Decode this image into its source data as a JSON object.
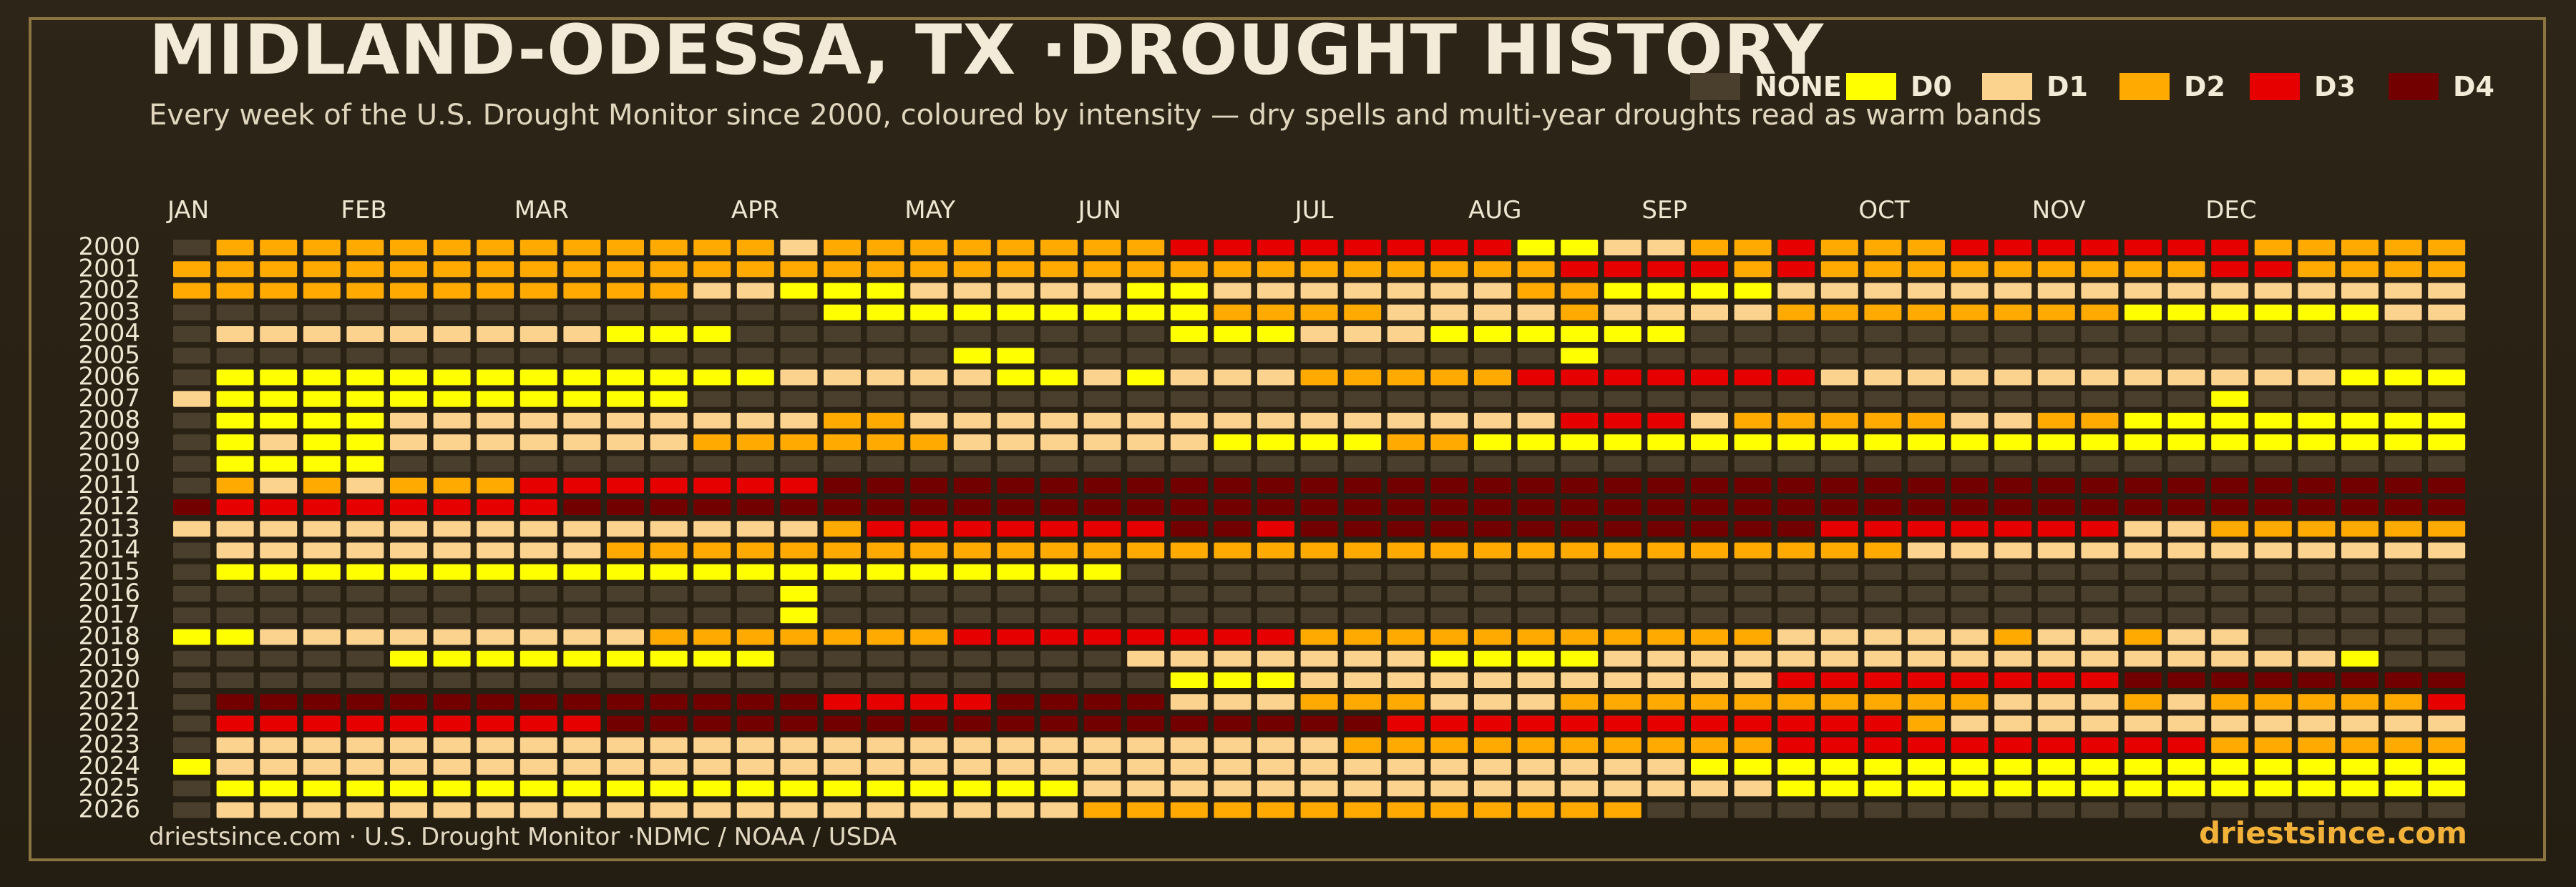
{
  "title": "MIDLAND-ODESSA, TX ·DROUGHT HISTORY",
  "subtitle": "Every week of the U.S. Drought Monitor since 2000, coloured by intensity — dry spells and multi-year droughts read as warm bands",
  "footer": {
    "source": "driestsince.com  · U.S. Drought Monitor ·NDMC / NOAA / USDA",
    "brand": "driestsince.com"
  },
  "colors": {
    "background": "#2b2416",
    "frame": "#8a7442",
    "brand": "#f2b23a"
  },
  "legend": [
    {
      "label": "NONE",
      "color": "#4a3f2c"
    },
    {
      "label": "D0",
      "color": "#ffff00"
    },
    {
      "label": "D1",
      "color": "#fcd38e"
    },
    {
      "label": "D2",
      "color": "#ffaa00"
    },
    {
      "label": "D3",
      "color": "#e60000"
    },
    {
      "label": "D4",
      "color": "#730000"
    }
  ],
  "chart_data": {
    "type": "heatmap",
    "title": "MIDLAND-ODESSA, TX ·DROUGHT HISTORY",
    "x_label": "",
    "y_label": "",
    "months": [
      "JAN",
      "FEB",
      "MAR",
      "APR",
      "MAY",
      "JUN",
      "JUL",
      "AUG",
      "SEP",
      "OCT",
      "NOV",
      "DEC"
    ],
    "month_start_week": [
      0,
      4,
      8,
      13,
      17,
      21,
      26,
      30,
      34,
      39,
      43,
      47
    ],
    "weeks_per_year": 53,
    "legend_placement": "top-right",
    "categories": [
      "NONE",
      "D0",
      "D1",
      "D2",
      "D3",
      "D4"
    ],
    "value_key": "0=NONE, 1=D0, 2=D1, 3=D2, 4=D3, 5=D4, -1=no data",
    "years": [
      "2000",
      "2001",
      "2002",
      "2003",
      "2004",
      "2005",
      "2006",
      "2007",
      "2008",
      "2009",
      "2010",
      "2011",
      "2012",
      "2013",
      "2014",
      "2015",
      "2016",
      "2017",
      "2018",
      "2019",
      "2020",
      "2021",
      "2022",
      "2023",
      "2024",
      "2025",
      "2026"
    ],
    "weeks": [
      "03333333333333233333333444444441122334333444444433333",
      "33333333333333333333333333333333444434333333333443333",
      "33333333333322111222221122222223311112222222222222222",
      "00000000000000011111111133332222322223333333311111122",
      "02222222221110000000000111222111111000000000000000000",
      "00000000000000000011000000000000100000000000000000000",
      "01111111111111222221121222333334444444222222222222111",
      "21111111111100000000000000000000000000000000000100000",
      "01111222222222233222222222222222444233333223311111111",
      "01211222222233333322222211113311111111111111111111111",
      "01111000000000000000000000000000000000000000000000000",
      "03232333444444455555555555555555555555555555555555555",
      "54444444455555555555555555555555555555555555555555555",
      "22222222222222234444444554555555555555444444422333333",
      "02222222223333333333333333333333333333332222222222222",
      "01111111111111111111110000000000000000000000000000000",
      "00000000000000100000000000000000000000000000000000000",
      "00000000000000100000000000000000000000000000000000000",
      "11222222222333333344444444333333333332222232232200000",
      "00000111111111000000002222222111122222222222222222100",
      "00000000000000000000000111222222222224444444455555555",
      "05555555555555544445555222333222333333333322232333334",
      "04444444445555555555555555554444444444443222222222222",
      "02222222222222222222222222233333333334444444444333333",
      "12222222222222222222222222222222222111111111111111111",
      "01111111111111111111122222222222222221111111111111111",
      "02222222222222222222233333333333330000000000000000000"
    ]
  }
}
